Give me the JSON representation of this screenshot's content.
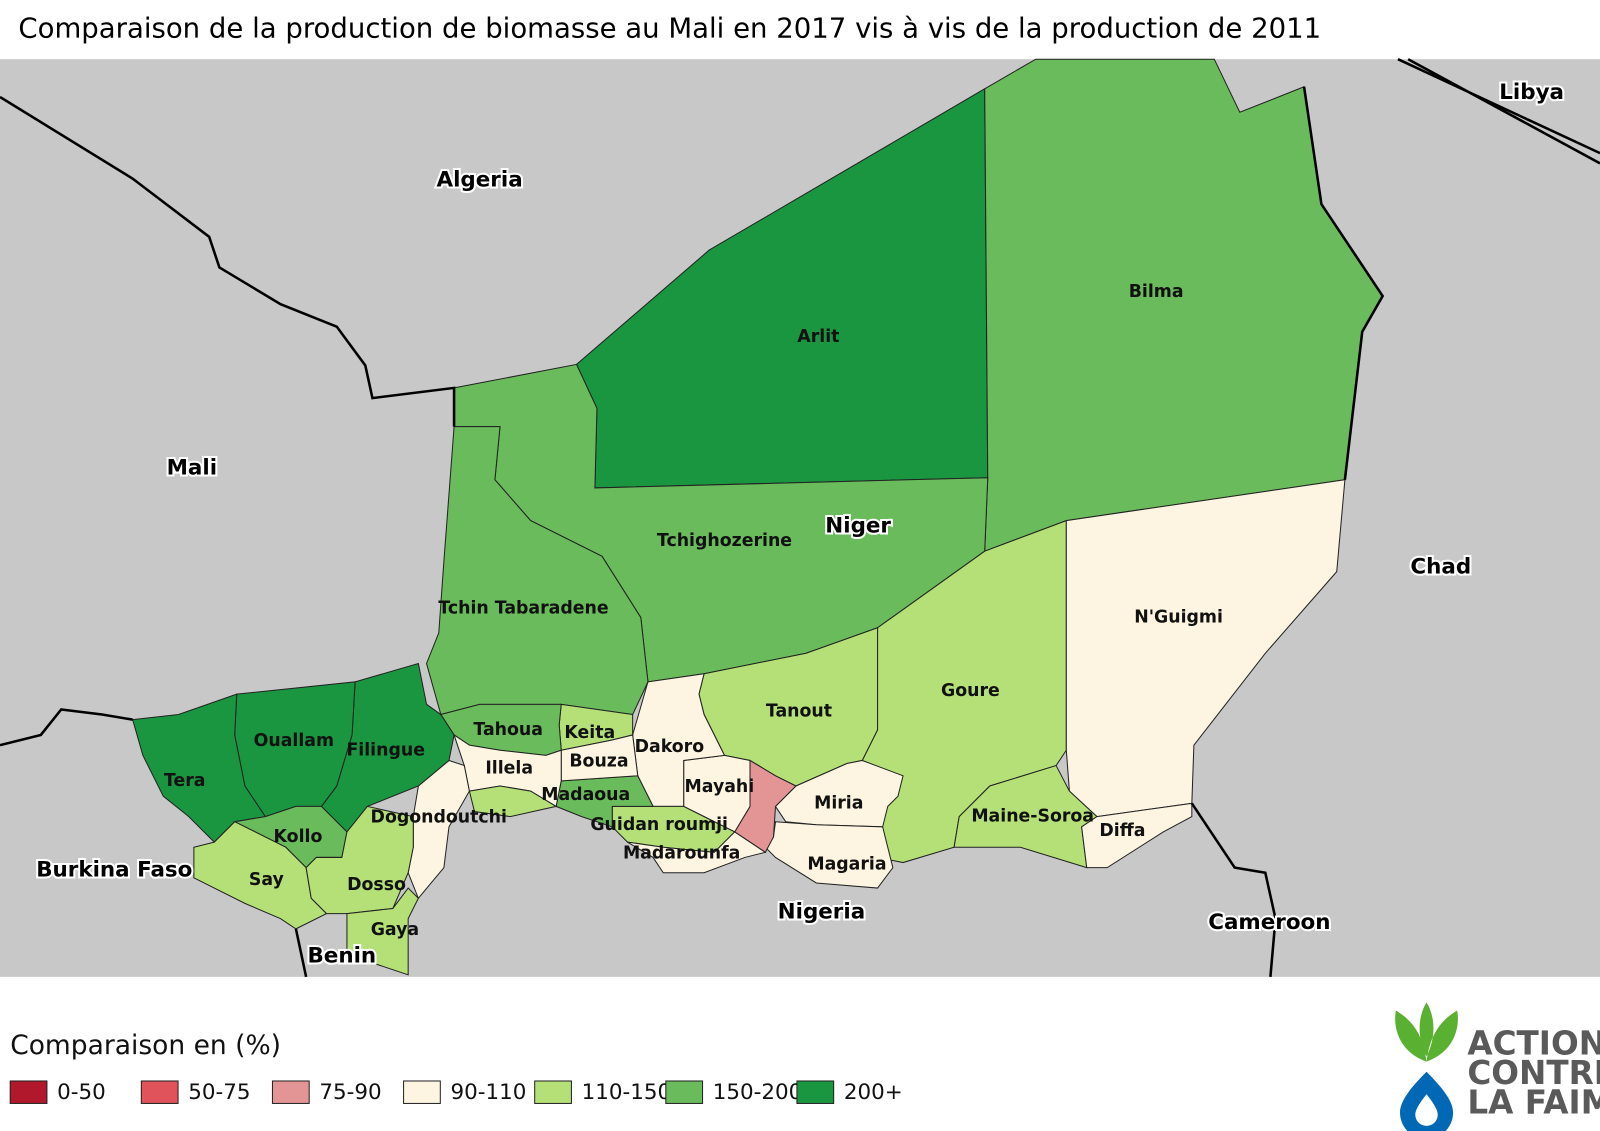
{
  "title": "Comparaison de la production de biomasse au Mali en 2017 vis à vis de la production de 2011",
  "countries": [
    {
      "label": "Algeria"
    },
    {
      "label": "Libya"
    },
    {
      "label": "Mali"
    },
    {
      "label": "Chad"
    },
    {
      "label": "Burkina Faso"
    },
    {
      "label": "Benin"
    },
    {
      "label": "Nigeria"
    },
    {
      "label": "Cameroon"
    },
    {
      "label": "Niger"
    }
  ],
  "departments": [
    {
      "label": "Arlit",
      "class": "200+"
    },
    {
      "label": "Bilma",
      "class": "150-200"
    },
    {
      "label": "Tchighozerine",
      "class": "150-200"
    },
    {
      "label": "Tchin Tabaradene",
      "class": "150-200"
    },
    {
      "label": "Goure",
      "class": "110-150"
    },
    {
      "label": "N'Guigmi",
      "class": "90-110"
    },
    {
      "label": "Maine-Soroa",
      "class": "110-150"
    },
    {
      "label": "Diffa",
      "class": "90-110"
    },
    {
      "label": "Tanout",
      "class": "110-150"
    },
    {
      "label": "Miria",
      "class": "90-110"
    },
    {
      "label": "Magaria",
      "class": "90-110"
    },
    {
      "label": null,
      "class": "75-90"
    },
    {
      "label": "Mayahi",
      "class": "90-110"
    },
    {
      "label": "Dakoro",
      "class": "90-110"
    },
    {
      "label": "Guidan roumji",
      "class": "110-150"
    },
    {
      "label": "Madarounfa",
      "class": "90-110"
    },
    {
      "label": "Madaoua",
      "class": "150-200"
    },
    {
      "label": "Keita",
      "class": "110-150"
    },
    {
      "label": "Bouza",
      "class": "90-110"
    },
    {
      "label": "Tahoua",
      "class": "150-200"
    },
    {
      "label": "Illela",
      "class": "90-110"
    },
    {
      "label": "Dogondoutchi",
      "class": "90-110"
    },
    {
      "label": null,
      "class": "110-150"
    },
    {
      "label": "Filingue",
      "class": "200+"
    },
    {
      "label": "Ouallam",
      "class": "200+"
    },
    {
      "label": "Tera",
      "class": "200+"
    },
    {
      "label": "Kollo",
      "class": "150-200"
    },
    {
      "label": "Say",
      "class": "110-150"
    },
    {
      "label": "Dosso",
      "class": "110-150"
    },
    {
      "label": "Gaya",
      "class": "110-150"
    }
  ],
  "legend": {
    "title": "Comparaison en (%)",
    "items": [
      {
        "label": "0-50",
        "color": "#b2182b"
      },
      {
        "label": "50-75",
        "color": "#e0535a"
      },
      {
        "label": "75-90",
        "color": "#e39596"
      },
      {
        "label": "90-110",
        "color": "#fdf5e1"
      },
      {
        "label": "110-150",
        "color": "#b4e077"
      },
      {
        "label": "150-200",
        "color": "#6abb5b"
      },
      {
        "label": "200+",
        "color": "#1a9641"
      }
    ]
  },
  "logo": {
    "lines": [
      "ACTION",
      "CONTRE",
      "LA FAIM"
    ]
  }
}
